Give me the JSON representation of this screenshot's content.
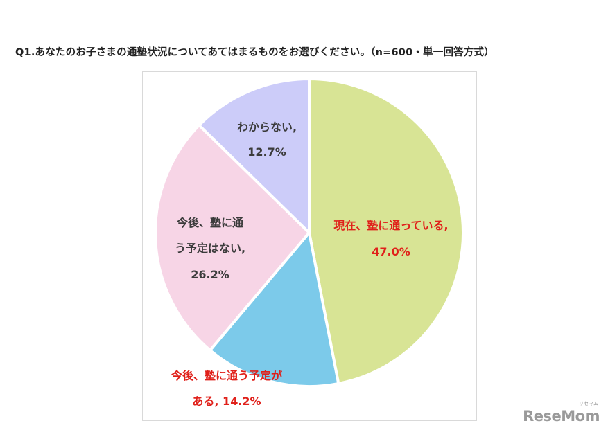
{
  "question": "Q1.あなたのお子さまの通塾状況についてあてはまるものをお選びください。（n=600・単一回答方式）",
  "brand": "ReseMom",
  "brand_small": "リセマム",
  "chart_data": {
    "type": "pie",
    "title": "Q1.あなたのお子さまの通塾状況についてあてはまるものをお選びください。（n=600・単一回答方式）",
    "slices": [
      {
        "label": "現在、塾に通っている,",
        "value": 47.0,
        "value_text": "47.0%",
        "color": "#d8e495",
        "label_color": "#e0201a"
      },
      {
        "label": "今後、塾に通う予定がある,",
        "value": 14.2,
        "value_text": "14.2%",
        "color": "#7ccaea",
        "label_color": "#e0201a"
      },
      {
        "label": "今後、塾に通う予定はない,",
        "value": 26.2,
        "value_text": "26.2%",
        "color": "#f7d5e6",
        "label_color": "#3b3b3b"
      },
      {
        "label": "わからない,",
        "value": 12.7,
        "value_text": "12.7%",
        "color": "#ccccf9",
        "label_color": "#3b3b3b"
      }
    ],
    "start_angle": "12 o'clock",
    "direction": "clockwise",
    "legend": "none"
  }
}
